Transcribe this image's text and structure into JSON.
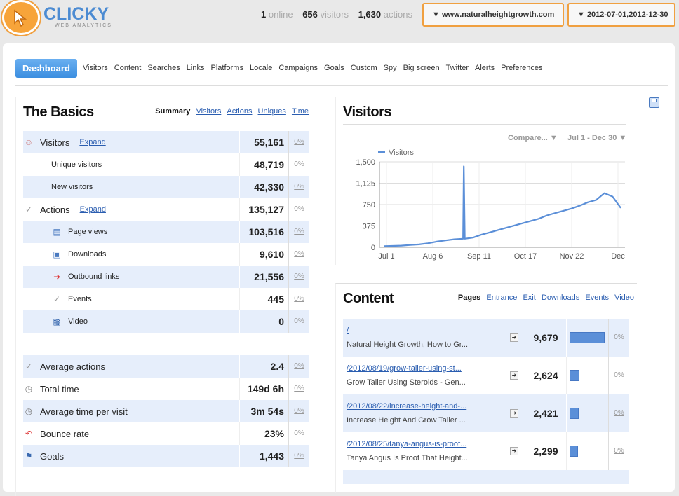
{
  "header": {
    "logo_text": "CLICKY",
    "logo_sub": "WEB ANALYTICS",
    "online_count": "1",
    "online_label": "online",
    "visitors_count": "656",
    "visitors_label": "visitors",
    "actions_count": "1,630",
    "actions_label": "actions",
    "site_select": "▼ www.naturalheightgrowth.com",
    "date_select": "▼ 2012-07-01,2012-12-30"
  },
  "nav": {
    "active": "Dashboard",
    "items": [
      "Visitors",
      "Content",
      "Searches",
      "Links",
      "Platforms",
      "Locale",
      "Campaigns",
      "Goals",
      "Custom",
      "Spy",
      "Big screen",
      "Twitter",
      "Alerts",
      "Preferences"
    ]
  },
  "basics": {
    "title": "The Basics",
    "tabs": {
      "current": "Summary",
      "links": [
        "Visitors",
        "Actions",
        "Uniques",
        "Time"
      ]
    },
    "rows": [
      {
        "label": "Visitors",
        "expand": "Expand",
        "value": "55,161",
        "pct": "0%",
        "icon": "visitors-icon"
      },
      {
        "label": "Unique visitors",
        "value": "48,719",
        "pct": "0%"
      },
      {
        "label": "New visitors",
        "value": "42,330",
        "pct": "0%"
      },
      {
        "label": "Actions",
        "expand": "Expand",
        "value": "135,127",
        "pct": "0%",
        "icon": "actions-icon"
      },
      {
        "label": "Page views",
        "value": "103,516",
        "pct": "0%",
        "icon": "page-icon"
      },
      {
        "label": "Downloads",
        "value": "9,610",
        "pct": "0%",
        "icon": "download-icon"
      },
      {
        "label": "Outbound links",
        "value": "21,556",
        "pct": "0%",
        "icon": "outbound-icon"
      },
      {
        "label": "Events",
        "value": "445",
        "pct": "0%",
        "icon": "events-icon"
      },
      {
        "label": "Video",
        "value": "0",
        "pct": "0%",
        "icon": "video-icon"
      }
    ],
    "rows2": [
      {
        "label": "Average actions",
        "value": "2.4",
        "pct": "0%",
        "icon": "actions-icon"
      },
      {
        "label": "Total time",
        "value": "149d 6h",
        "pct": "0%",
        "icon": "clock-icon"
      },
      {
        "label": "Average time per visit",
        "value": "3m 54s",
        "pct": "0%",
        "icon": "clock-icon"
      },
      {
        "label": "Bounce rate",
        "value": "23%",
        "pct": "0%",
        "icon": "bounce-icon"
      },
      {
        "label": "Goals",
        "value": "1,443",
        "pct": "0%",
        "icon": "goals-icon"
      }
    ]
  },
  "visitors_chart": {
    "title": "Visitors",
    "compare_label": "Compare... ▼",
    "range_label": "Jul 1 - Dec 30 ▼"
  },
  "chart_data": {
    "type": "line",
    "title": "Visitors",
    "legend": "top-left",
    "series": [
      {
        "name": "Visitors",
        "color": "#5b8fd8"
      }
    ],
    "x_ticks": [
      "Jul 1",
      "Aug 6",
      "Sep 11",
      "Oct 17",
      "Nov 22",
      "Dec"
    ],
    "y_ticks": [
      "0",
      "375",
      "750",
      "1,125",
      "1,500"
    ],
    "ylim": [
      0,
      1500
    ],
    "x": [
      "Jul 1",
      "Jul 8",
      "Jul 15",
      "Jul 22",
      "Jul 29",
      "Aug 6",
      "Aug 13",
      "Aug 20",
      "Aug 27",
      "Aug 30",
      "Aug 31",
      "Sep 1",
      "Sep 4",
      "Sep 11",
      "Sep 18",
      "Sep 25",
      "Oct 2",
      "Oct 9",
      "Oct 17",
      "Oct 24",
      "Oct 31",
      "Nov 7",
      "Nov 14",
      "Nov 22",
      "Nov 29",
      "Dec 6",
      "Dec 13",
      "Dec 20",
      "Dec 24",
      "Dec 27",
      "Dec 30"
    ],
    "values": [
      20,
      25,
      30,
      40,
      50,
      70,
      100,
      120,
      140,
      150,
      1420,
      150,
      170,
      220,
      260,
      300,
      340,
      380,
      420,
      460,
      500,
      560,
      600,
      640,
      680,
      730,
      790,
      830,
      950,
      890,
      690
    ]
  },
  "content": {
    "title": "Content",
    "tabs": {
      "current": "Pages",
      "links": [
        "Entrance",
        "Exit",
        "Downloads",
        "Events",
        "Video"
      ]
    },
    "rows": [
      {
        "path": "/",
        "title": "Natural Height Growth, How to Gr...",
        "value": "9,679",
        "share": 1.0,
        "pct": "0%"
      },
      {
        "path": "/2012/08/19/grow-taller-using-st...",
        "title": "Grow Taller Using Steroids - Gen...",
        "value": "2,624",
        "share": 0.27,
        "pct": "0%"
      },
      {
        "path": "/2012/08/22/increase-height-and-...",
        "title": "Increase Height And Grow Taller ...",
        "value": "2,421",
        "share": 0.25,
        "pct": "0%"
      },
      {
        "path": "/2012/08/25/tanya-angus-is-proof...",
        "title": "Tanya Angus Is Proof That Height...",
        "value": "2,299",
        "share": 0.24,
        "pct": "0%"
      }
    ]
  }
}
